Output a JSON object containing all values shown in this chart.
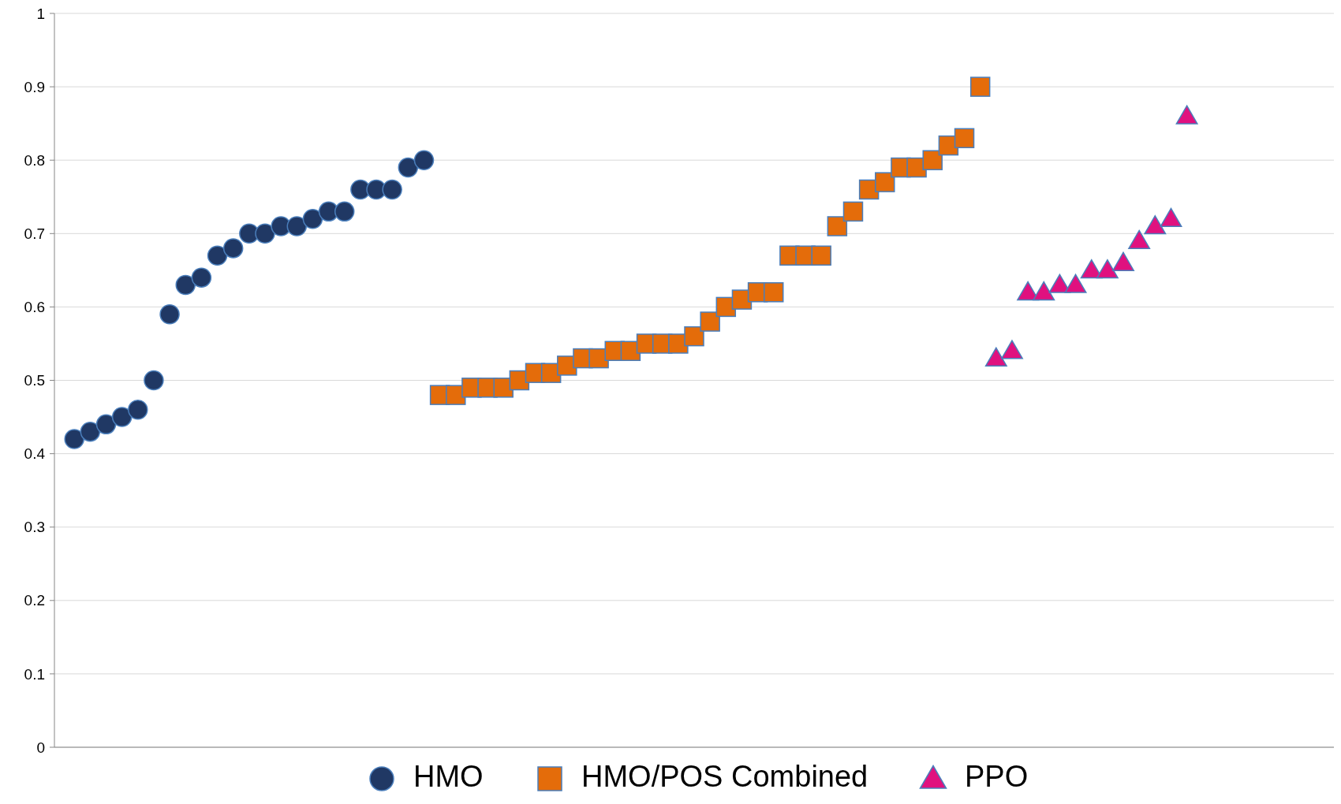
{
  "chart_data": {
    "type": "scatter",
    "categories": [
      null,
      null,
      null,
      null,
      null,
      null,
      null,
      null,
      null,
      null,
      null,
      null,
      null,
      null,
      null,
      null,
      null,
      null,
      null,
      null,
      null,
      null,
      null,
      null,
      null,
      null,
      null,
      null,
      null,
      null,
      null,
      null,
      null,
      null,
      null,
      null,
      null,
      null,
      null,
      null,
      null,
      null,
      null,
      null,
      null,
      null,
      null,
      null,
      null,
      null,
      null,
      null,
      null,
      null,
      null,
      null,
      null,
      null,
      null,
      null,
      null,
      null,
      null,
      null,
      null,
      null,
      null,
      null,
      null,
      null,
      null,
      null,
      null,
      null,
      null,
      null,
      null,
      null,
      null,
      null,
      null
    ],
    "ylim": [
      0,
      1
    ],
    "yticks": [
      0,
      0.1,
      0.2,
      0.3,
      0.4,
      0.5,
      0.6,
      0.7,
      0.8,
      0.9,
      1
    ],
    "grid": "y",
    "legend": "bottom",
    "series": [
      {
        "name": "HMO",
        "color": "#203864",
        "marker": "circle",
        "values": [
          null,
          0.42,
          0.43,
          0.44,
          0.45,
          0.46,
          0.5,
          0.59,
          0.63,
          0.64,
          0.67,
          0.68,
          0.7,
          0.7,
          0.71,
          0.71,
          0.72,
          0.73,
          0.73,
          0.76,
          0.76,
          0.76,
          0.79,
          0.8,
          null,
          null,
          null,
          null,
          null,
          null,
          null,
          null,
          null,
          null,
          null,
          null,
          null,
          null,
          null,
          null,
          null,
          null,
          null,
          null,
          null,
          null,
          null,
          null,
          null,
          null,
          null,
          null,
          null,
          null,
          null,
          null,
          null,
          null,
          null,
          null,
          null,
          null,
          null,
          null,
          null,
          null,
          null,
          null,
          null,
          null,
          null,
          null,
          null,
          null,
          null,
          null,
          null,
          null,
          null,
          null,
          null
        ]
      },
      {
        "name": "HMO/POS Combined",
        "color": "#e46c0a",
        "marker": "square",
        "values": [
          null,
          null,
          null,
          null,
          null,
          null,
          null,
          null,
          null,
          null,
          null,
          null,
          null,
          null,
          null,
          null,
          null,
          null,
          null,
          null,
          null,
          null,
          null,
          null,
          0.48,
          0.48,
          0.49,
          0.49,
          0.49,
          0.5,
          0.51,
          0.51,
          0.52,
          0.53,
          0.53,
          0.54,
          0.54,
          0.55,
          0.55,
          0.55,
          0.56,
          0.58,
          0.6,
          0.61,
          0.62,
          0.62,
          0.67,
          0.67,
          0.67,
          0.71,
          0.73,
          0.76,
          0.77,
          0.79,
          0.79,
          0.8,
          0.82,
          0.83,
          0.9,
          null,
          null,
          null,
          null,
          null,
          null,
          null,
          null,
          null,
          null,
          null,
          null,
          null,
          null,
          null,
          null,
          null,
          null,
          null,
          null,
          null,
          null
        ]
      },
      {
        "name": "PPO",
        "color": "#e0117f",
        "marker": "triangle",
        "values": [
          null,
          null,
          null,
          null,
          null,
          null,
          null,
          null,
          null,
          null,
          null,
          null,
          null,
          null,
          null,
          null,
          null,
          null,
          null,
          null,
          null,
          null,
          null,
          null,
          null,
          null,
          null,
          null,
          null,
          null,
          null,
          null,
          null,
          null,
          null,
          null,
          null,
          null,
          null,
          null,
          null,
          null,
          null,
          null,
          null,
          null,
          null,
          null,
          null,
          null,
          null,
          null,
          null,
          null,
          null,
          null,
          null,
          null,
          null,
          0.53,
          0.54,
          0.62,
          0.62,
          0.63,
          0.63,
          0.65,
          0.65,
          0.66,
          0.69,
          0.71,
          0.72,
          0.86,
          null,
          null,
          null,
          null,
          null,
          null,
          null,
          null,
          null
        ]
      }
    ]
  }
}
